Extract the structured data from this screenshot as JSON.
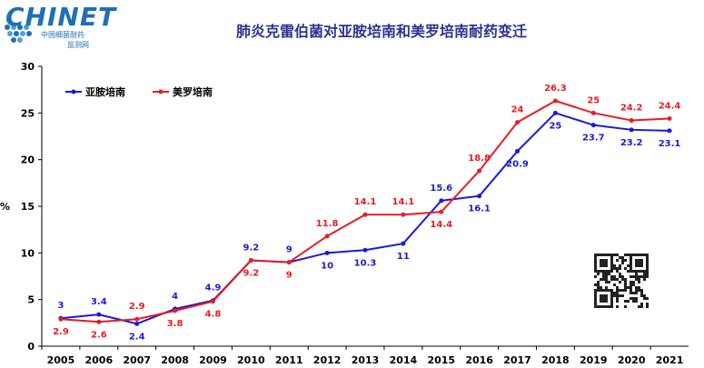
{
  "logo": {
    "brand": "CHINET",
    "subtitle_1": "中国细菌耐药",
    "subtitle_2": "监测网"
  },
  "colors": {
    "series_1": "#1a1ad6",
    "series_2": "#e31e24",
    "title": "#2e3192",
    "logo": "#1f6fb6"
  },
  "chart_data": {
    "type": "line",
    "title": "肺炎克雷伯菌对亚胺培南和美罗培南耐药变迁",
    "ylabel": "%",
    "xlabel": "",
    "ylim": [
      0,
      30
    ],
    "yticks": [
      0,
      5,
      10,
      15,
      20,
      25,
      30
    ],
    "grid": false,
    "legend_position": "top-left",
    "x": [
      "2005",
      "2006",
      "2007",
      "2008",
      "2009",
      "2010",
      "2011",
      "2012",
      "2013",
      "2014",
      "2015",
      "2016",
      "2017",
      "2018",
      "2019",
      "2020",
      "2021"
    ],
    "series": [
      {
        "name": "亚胺培南",
        "values": [
          3,
          3.4,
          2.4,
          4,
          4.9,
          9.2,
          9,
          10,
          10.3,
          11,
          15.6,
          16.1,
          20.9,
          25,
          23.7,
          23.2,
          23.1
        ],
        "labels": [
          "3",
          "3.4",
          "2.4",
          "4",
          "4.9",
          "9.2",
          "9",
          "10",
          "10.3",
          "11",
          "15.6",
          "16.1",
          "20.9",
          "25",
          "23.7",
          "23.2",
          "23.1"
        ]
      },
      {
        "name": "美罗培南",
        "values": [
          2.9,
          2.6,
          2.9,
          3.8,
          4.8,
          9.2,
          9,
          11.8,
          14.1,
          14.1,
          14.4,
          18.8,
          24,
          26.3,
          25,
          24.2,
          24.4
        ],
        "labels": [
          "2.9",
          "2.6",
          "2.9",
          "3.8",
          "4.8",
          "9.2",
          "9",
          "11.8",
          "14.1",
          "14.1",
          "14.4",
          "18.8",
          "24",
          "26.3",
          "25",
          "24.2",
          "24.4"
        ]
      }
    ]
  }
}
